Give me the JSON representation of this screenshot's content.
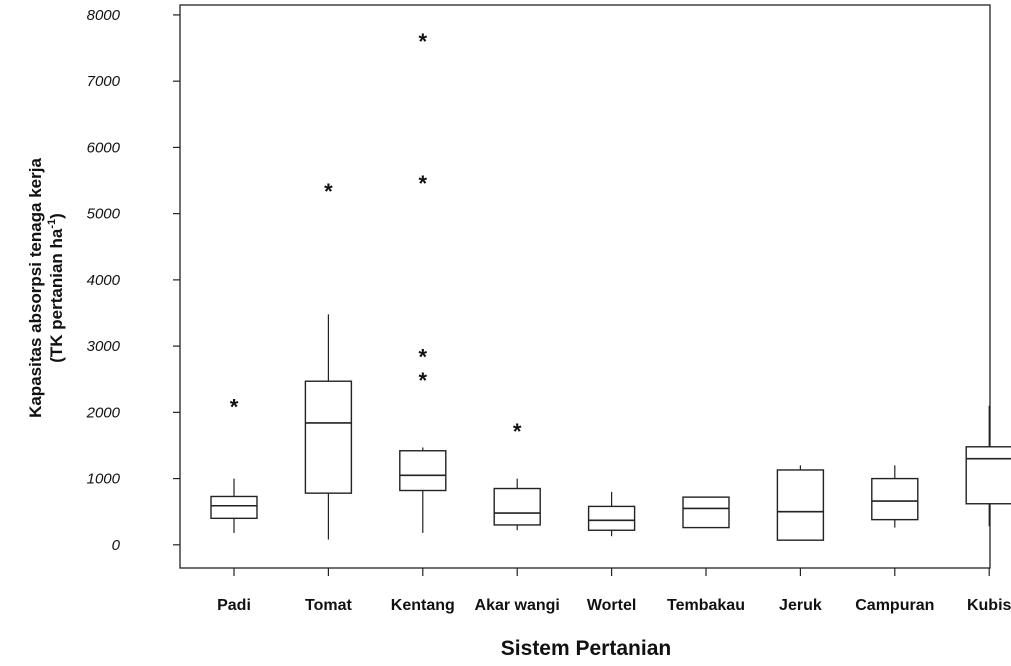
{
  "chart_data": {
    "type": "box",
    "xlabel": "Sistem Pertanian",
    "ylabel": "Kapasitas absorpsi tenaga kerja",
    "ylabel_line2": "(TK pertanian ha",
    "ylabel_superscript": "-1",
    "ylabel_close": ")",
    "ylim": [
      -350,
      8150
    ],
    "yticks": [
      0,
      1000,
      2000,
      3000,
      4000,
      5000,
      6000,
      7000,
      8000
    ],
    "ytick_labels": [
      "0",
      "1000",
      "2000",
      "3000",
      "4000",
      "5000",
      "6000",
      "7000",
      "8000"
    ],
    "grid": false,
    "categories": [
      "Padi",
      "Tomat",
      "Kentang",
      "Akar wangi",
      "Wortel",
      "Tembakau",
      "Jeruk",
      "Campuran",
      "Kubis"
    ],
    "boxes": [
      {
        "whisker_low": 180,
        "q1": 400,
        "median": 590,
        "q3": 730,
        "whisker_high": 1000,
        "outliers": [
          2100
        ]
      },
      {
        "whisker_low": 80,
        "q1": 780,
        "median": 1840,
        "q3": 2470,
        "whisker_high": 3480,
        "outliers": [
          5360
        ]
      },
      {
        "whisker_low": 180,
        "q1": 820,
        "median": 1050,
        "q3": 1420,
        "whisker_high": 1470,
        "outliers": [
          2500,
          2860,
          5480,
          7620
        ]
      },
      {
        "whisker_low": 220,
        "q1": 300,
        "median": 480,
        "q3": 850,
        "whisker_high": 1000,
        "outliers": [
          1730
        ]
      },
      {
        "whisker_low": 130,
        "q1": 220,
        "median": 370,
        "q3": 580,
        "whisker_high": 800,
        "outliers": []
      },
      {
        "whisker_low": 260,
        "q1": 260,
        "median": 550,
        "q3": 720,
        "whisker_high": 720,
        "outliers": []
      },
      {
        "whisker_low": 70,
        "q1": 70,
        "median": 500,
        "q3": 1130,
        "whisker_high": 1200,
        "outliers": []
      },
      {
        "whisker_low": 260,
        "q1": 380,
        "median": 660,
        "q3": 1000,
        "whisker_high": 1200,
        "outliers": []
      },
      {
        "whisker_low": 280,
        "q1": 620,
        "median": 1300,
        "q3": 1480,
        "whisker_high": 2100,
        "outliers": []
      }
    ]
  }
}
